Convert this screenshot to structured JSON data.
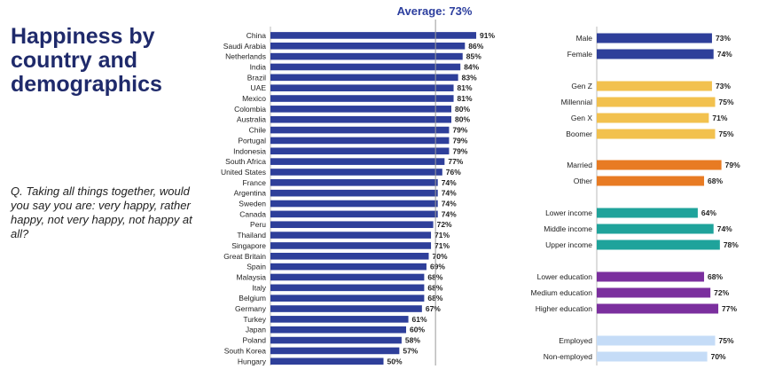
{
  "title": "Happiness by country and demographics",
  "question": "Q. Taking all things together, would you say you are: very happy, rather happy, not very happy, not happy at all?",
  "average_label": "Average: 73%",
  "colors": {
    "country": "#2e3f9a",
    "gender": "#2e3f9a",
    "generation": "#f2c14e",
    "marital": "#e87b23",
    "income": "#1fa39b",
    "education": "#7b2f9e",
    "employment": "#c5dcf7",
    "average_line": "#999999"
  },
  "chart_data": [
    {
      "type": "bar",
      "orientation": "horizontal",
      "categories": [
        "China",
        "Saudi Arabia",
        "Netherlands",
        "India",
        "Brazil",
        "UAE",
        "Mexico",
        "Colombia",
        "Australia",
        "Chile",
        "Portugal",
        "Indonesia",
        "South Africa",
        "United States",
        "France",
        "Argentina",
        "Sweden",
        "Canada",
        "Peru",
        "Thailand",
        "Singapore",
        "Great Britain",
        "Spain",
        "Malaysia",
        "Italy",
        "Belgium",
        "Germany",
        "Turkey",
        "Japan",
        "Poland",
        "South Korea",
        "Hungary"
      ],
      "values": [
        91,
        86,
        85,
        84,
        83,
        81,
        81,
        80,
        80,
        79,
        79,
        79,
        77,
        76,
        74,
        74,
        74,
        74,
        72,
        71,
        71,
        70,
        69,
        68,
        68,
        68,
        67,
        61,
        60,
        58,
        57,
        50
      ],
      "value_labels": [
        "91%",
        "86%",
        "85%",
        "84%",
        "83%",
        "81%",
        "81%",
        "80%",
        "80%",
        "79%",
        "79%",
        "79%",
        "77%",
        "76%",
        "74%",
        "74%",
        "74%",
        "74%",
        "72%",
        "71%",
        "71%",
        "70%",
        "69%",
        "68%",
        "68%",
        "68%",
        "67%",
        "61%",
        "60%",
        "58%",
        "57%",
        "50%"
      ],
      "average": 73,
      "xlim": [
        0,
        100
      ]
    },
    {
      "type": "bar",
      "orientation": "horizontal",
      "groups": [
        {
          "color_key": "gender",
          "categories": [
            "Male",
            "Female"
          ],
          "values": [
            73,
            74
          ],
          "value_labels": [
            "73%",
            "74%"
          ]
        },
        {
          "color_key": "generation",
          "categories": [
            "Gen Z",
            "Millennial",
            "Gen X",
            "Boomer"
          ],
          "values": [
            73,
            75,
            71,
            75
          ],
          "value_labels": [
            "73%",
            "75%",
            "71%",
            "75%"
          ]
        },
        {
          "color_key": "marital",
          "categories": [
            "Married",
            "Other"
          ],
          "values": [
            79,
            68
          ],
          "value_labels": [
            "79%",
            "68%"
          ]
        },
        {
          "color_key": "income",
          "categories": [
            "Lower income",
            "Middle income",
            "Upper income"
          ],
          "values": [
            64,
            74,
            78
          ],
          "value_labels": [
            "64%",
            "74%",
            "78%"
          ]
        },
        {
          "color_key": "education",
          "categories": [
            "Lower education",
            "Medium education",
            "Higher education"
          ],
          "values": [
            68,
            72,
            77
          ],
          "value_labels": [
            "68%",
            "72%",
            "77%"
          ]
        },
        {
          "color_key": "employment",
          "categories": [
            "Employed",
            "Non-employed"
          ],
          "values": [
            75,
            70
          ],
          "value_labels": [
            "75%",
            "70%"
          ]
        }
      ],
      "xlim": [
        0,
        100
      ]
    }
  ]
}
